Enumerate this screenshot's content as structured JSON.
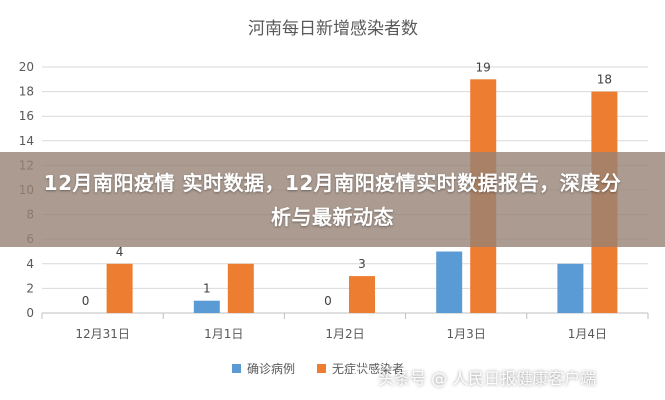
{
  "overlay": {
    "headline": "12月南阳疫情 实时数据，12月南阳疫情实时数据报告，深度分析与最新动态"
  },
  "watermark": {
    "text": "头条号 @ 人民日报健康客户端",
    "icon": "circle-logo-icon"
  },
  "colors": {
    "series_confirmed": "#5b9bd5",
    "series_asymptomatic": "#ed7d31",
    "grid": "#d9d9d9",
    "axis": "#bfbfbf"
  },
  "chart_data": {
    "type": "bar",
    "title": "河南每日新增感染者数",
    "xlabel": "",
    "ylabel": "",
    "categories": [
      "12月31日",
      "1月1日",
      "1月2日",
      "1月3日",
      "1月4日"
    ],
    "series": [
      {
        "name": "确诊病例",
        "values": [
          0,
          1,
          0,
          5,
          4
        ],
        "labels": [
          "0",
          "1",
          "0",
          "",
          ""
        ]
      },
      {
        "name": "无症状感染者",
        "values": [
          4,
          4,
          3,
          19,
          18
        ],
        "labels": [
          "4",
          "",
          "3",
          "19",
          "18"
        ]
      }
    ],
    "ylim": [
      0,
      20
    ],
    "yticks": [
      0,
      2,
      4,
      6,
      8,
      10,
      12,
      14,
      16,
      18,
      20
    ],
    "grid": true,
    "legend_position": "bottom"
  }
}
